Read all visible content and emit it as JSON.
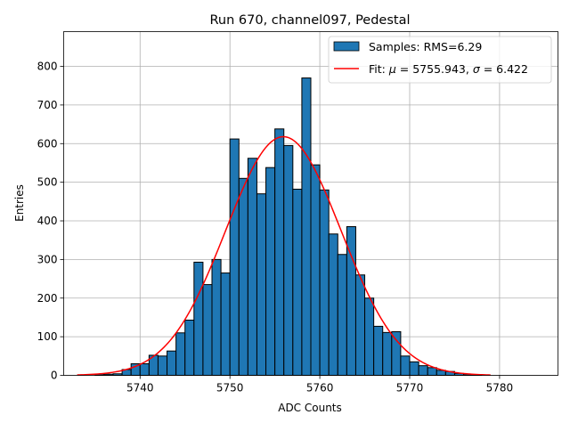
{
  "chart_data": {
    "type": "bar",
    "title": "Run 670, channel097, Pedestal",
    "xlabel": "ADC Counts",
    "ylabel": "Entries",
    "xlim": [
      5731.5,
      5786.5
    ],
    "ylim": [
      0,
      890
    ],
    "xticks": [
      5740,
      5750,
      5760,
      5770,
      5780
    ],
    "yticks": [
      0,
      100,
      200,
      300,
      400,
      500,
      600,
      700,
      800
    ],
    "grid": true,
    "legend_position": "top-right",
    "histogram": {
      "name": "Samples: RMS=6.29",
      "color": "#1f77b4",
      "edgecolor": "#000000",
      "bin_width": 1,
      "bin_starts": [
        5735,
        5736,
        5737,
        5738,
        5739,
        5740,
        5741,
        5742,
        5743,
        5744,
        5745,
        5746,
        5747,
        5748,
        5749,
        5750,
        5751,
        5752,
        5753,
        5754,
        5755,
        5756,
        5757,
        5758,
        5759,
        5760,
        5761,
        5762,
        5763,
        5764,
        5765,
        5766,
        5767,
        5768,
        5769,
        5770,
        5771,
        5772,
        5773,
        5774,
        5775,
        5776,
        5777
      ],
      "counts": [
        3,
        3,
        4,
        15,
        30,
        30,
        52,
        50,
        63,
        110,
        143,
        293,
        235,
        300,
        265,
        612,
        510,
        562,
        470,
        538,
        638,
        595,
        482,
        770,
        545,
        480,
        366,
        313,
        385,
        260,
        200,
        127,
        111,
        113,
        50,
        35,
        25,
        20,
        13,
        10,
        5,
        3,
        1
      ]
    },
    "fit": {
      "name": "Fit: μ = 5755.943, σ = 6.422",
      "label_prefix": "Fit: ",
      "mu_symbol": "μ",
      "mu_value": " = 5755.943, ",
      "sigma_symbol": "σ",
      "sigma_value": " = 6.422",
      "color": "#ff0000",
      "mu": 5755.943,
      "sigma": 6.422,
      "amplitude": 618,
      "x_range": [
        5733,
        5779
      ]
    }
  }
}
